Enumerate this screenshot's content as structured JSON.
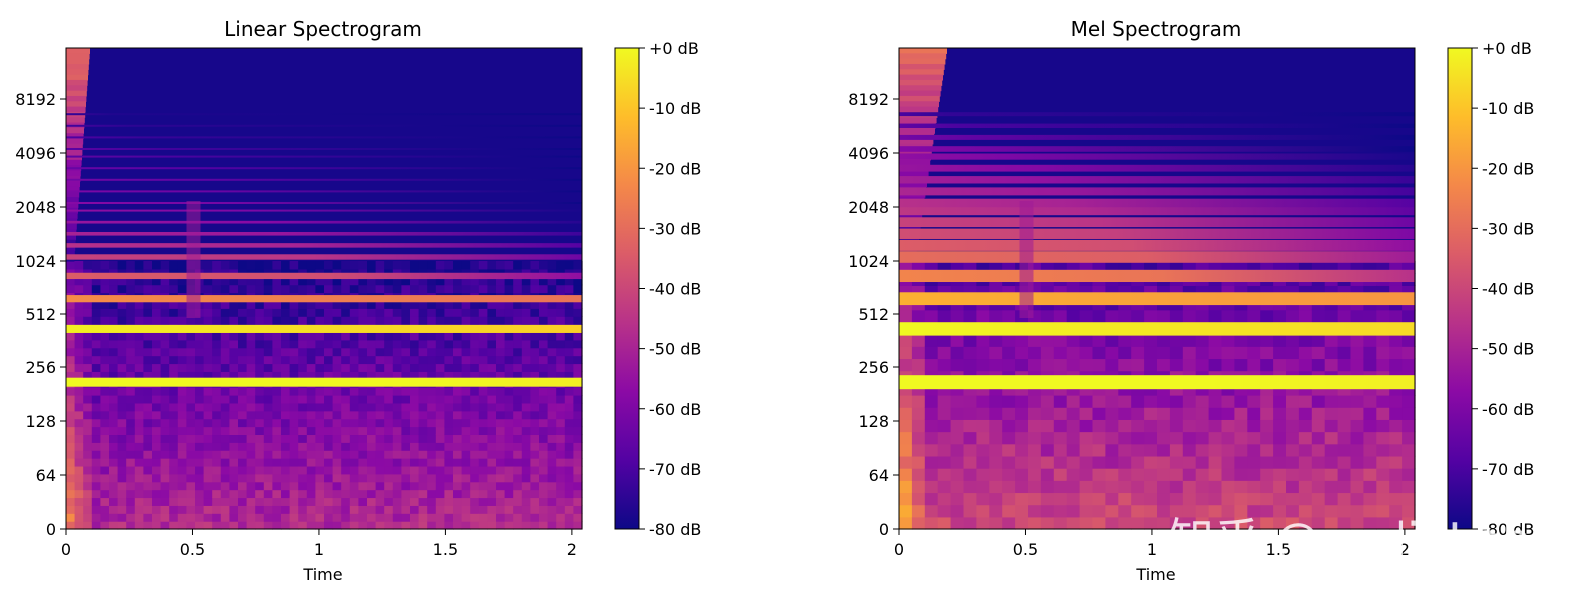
{
  "colormap": [
    "#0d0887",
    "#5302a3",
    "#8b0aa5",
    "#b83289",
    "#db5c68",
    "#f48849",
    "#febd2a",
    "#f0f921"
  ],
  "watermark": "知乎 @audioLab",
  "chart_data": [
    {
      "type": "heatmap",
      "title": "Linear Spectrogram",
      "xlabel": "Time",
      "ylabel": "",
      "xlim": [
        0,
        2.04
      ],
      "x_ticks": [
        0,
        0.5,
        1,
        1.5,
        2
      ],
      "x_tick_labels": [
        "0",
        "0.5",
        "1",
        "1.5",
        "2"
      ],
      "y_ticks": [
        0,
        64,
        128,
        256,
        512,
        1024,
        2048,
        4096,
        8192
      ],
      "y_tick_labels": [
        "0",
        "64",
        "128",
        "256",
        "512",
        "1024",
        "2048",
        "4096",
        "8192"
      ],
      "colorbar": {
        "range_db": [
          -80,
          0
        ],
        "ticks": [
          0,
          -10,
          -20,
          -30,
          -40,
          -50,
          -60,
          -70,
          -80
        ],
        "labels": [
          "+0 dB",
          "-10 dB",
          "-20 dB",
          "-30 dB",
          "-40 dB",
          "-50 dB",
          "-60 dB",
          "-70 dB",
          "-80 dB"
        ]
      },
      "harmonics_hz": [
        220,
        440,
        660,
        880,
        1100,
        1320,
        1540,
        1760,
        1980,
        2200,
        2640,
        3080,
        3520,
        3960,
        4400,
        5280,
        6160,
        7040
      ],
      "harmonic_peak_db": [
        0,
        -6,
        -26,
        -38,
        -45,
        -50,
        -54,
        -58,
        -60,
        -62,
        -64,
        -66,
        -68,
        -70,
        -71,
        -73,
        -75,
        -77
      ],
      "noise_floor_db": -66
    },
    {
      "type": "heatmap",
      "title": "Mel Spectrogram",
      "xlabel": "Time",
      "ylabel": "",
      "xlim": [
        0,
        2.04
      ],
      "x_ticks": [
        0,
        0.5,
        1,
        1.5,
        2
      ],
      "x_tick_labels": [
        "0",
        "0.5",
        "1",
        "1.5",
        "2"
      ],
      "y_ticks": [
        0,
        64,
        128,
        256,
        512,
        1024,
        2048,
        4096,
        8192
      ],
      "y_tick_labels": [
        "0",
        "64",
        "128",
        "256",
        "512",
        "1024",
        "2048",
        "4096",
        "8192"
      ],
      "colorbar": {
        "range_db": [
          -80,
          0
        ],
        "ticks": [
          0,
          -10,
          -20,
          -30,
          -40,
          -50,
          -60,
          -70,
          -80
        ],
        "labels": [
          "+0 dB",
          "-10 dB",
          "-20 dB",
          "-30 dB",
          "-40 dB",
          "-50 dB",
          "-60 dB",
          "-70 dB",
          "-80 dB"
        ]
      },
      "harmonics_hz": [
        220,
        440,
        660,
        880,
        1100,
        1320,
        1540,
        1760,
        1980,
        2200,
        2640,
        3080,
        3520,
        3960,
        4400,
        5280,
        6160,
        7040
      ],
      "harmonic_peak_db": [
        0,
        -4,
        -18,
        -28,
        -34,
        -38,
        -42,
        -45,
        -48,
        -50,
        -53,
        -55,
        -58,
        -60,
        -62,
        -66,
        -70,
        -74
      ],
      "noise_floor_db": -58
    }
  ]
}
